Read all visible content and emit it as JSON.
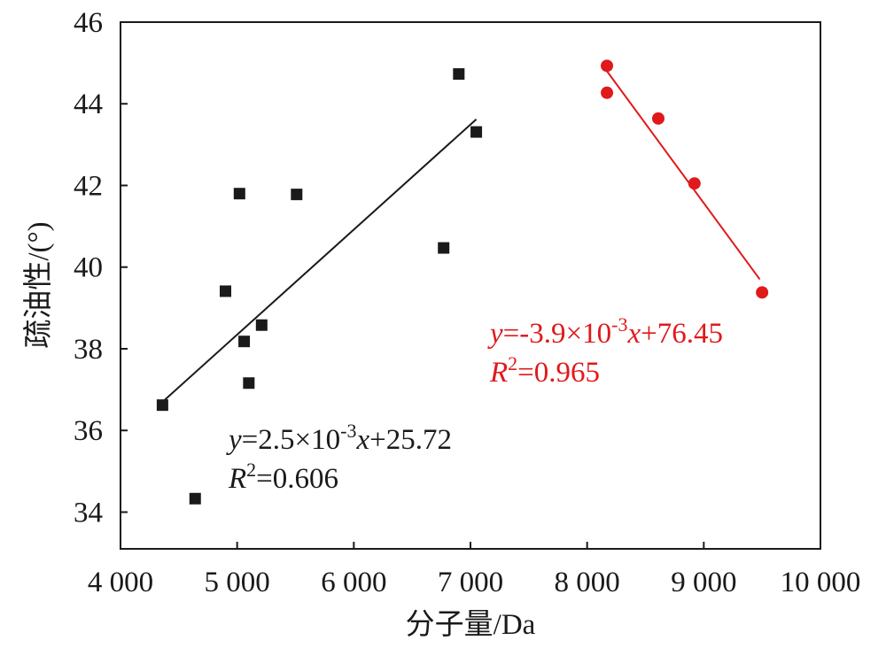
{
  "chart_data": {
    "type": "scatter",
    "title": "",
    "xlabel": "分子量/Da",
    "ylabel": "疏油性/(°)",
    "xlim": [
      4000,
      10000
    ],
    "ylim": [
      33.1,
      46
    ],
    "x_ticks": [
      4000,
      5000,
      6000,
      7000,
      8000,
      9000,
      10000
    ],
    "x_tick_labels": [
      "4 000",
      "5 000",
      "6 000",
      "7 000",
      "8 000",
      "9 000",
      "10 000"
    ],
    "y_ticks": [
      34,
      36,
      38,
      40,
      42,
      44,
      46
    ],
    "y_tick_labels": [
      "34",
      "36",
      "38",
      "40",
      "42",
      "44",
      "46"
    ],
    "grid": false,
    "legend": "none",
    "series": [
      {
        "marker": "square",
        "color": "#1a1a1a",
        "points": [
          {
            "x": 4360,
            "y": 36.62
          },
          {
            "x": 4640,
            "y": 34.33
          },
          {
            "x": 4900,
            "y": 39.41
          },
          {
            "x": 5020,
            "y": 41.8
          },
          {
            "x": 5060,
            "y": 38.18
          },
          {
            "x": 5100,
            "y": 37.16
          },
          {
            "x": 5210,
            "y": 38.58
          },
          {
            "x": 5510,
            "y": 41.78
          },
          {
            "x": 6770,
            "y": 40.47
          },
          {
            "x": 6900,
            "y": 44.73
          },
          {
            "x": 7050,
            "y": 43.31
          }
        ],
        "fit": {
          "x_range": [
            4360,
            7050
          ],
          "y_range": [
            36.7,
            43.62
          ]
        },
        "equation": {
          "y": "y",
          "eq": "=2.5×10",
          "exp": "-3",
          "x": "x",
          "rest": "+25.72"
        },
        "r2": {
          "r": "R",
          "sup": "2",
          "value": "=0.606"
        }
      },
      {
        "marker": "circle",
        "color": "#e0191b",
        "points": [
          {
            "x": 8170,
            "y": 44.93
          },
          {
            "x": 8170,
            "y": 44.27
          },
          {
            "x": 8610,
            "y": 43.64
          },
          {
            "x": 8920,
            "y": 42.05
          },
          {
            "x": 9500,
            "y": 39.38
          }
        ],
        "fit": {
          "x_range": [
            8170,
            9480
          ],
          "y_range": [
            44.8,
            39.7
          ]
        },
        "equation": {
          "y": "y",
          "eq": "=-3.9×10",
          "exp": "-3",
          "x": "x",
          "rest": "+76.45"
        },
        "r2": {
          "r": "R",
          "sup": "2",
          "value": "=0.965"
        }
      }
    ]
  }
}
